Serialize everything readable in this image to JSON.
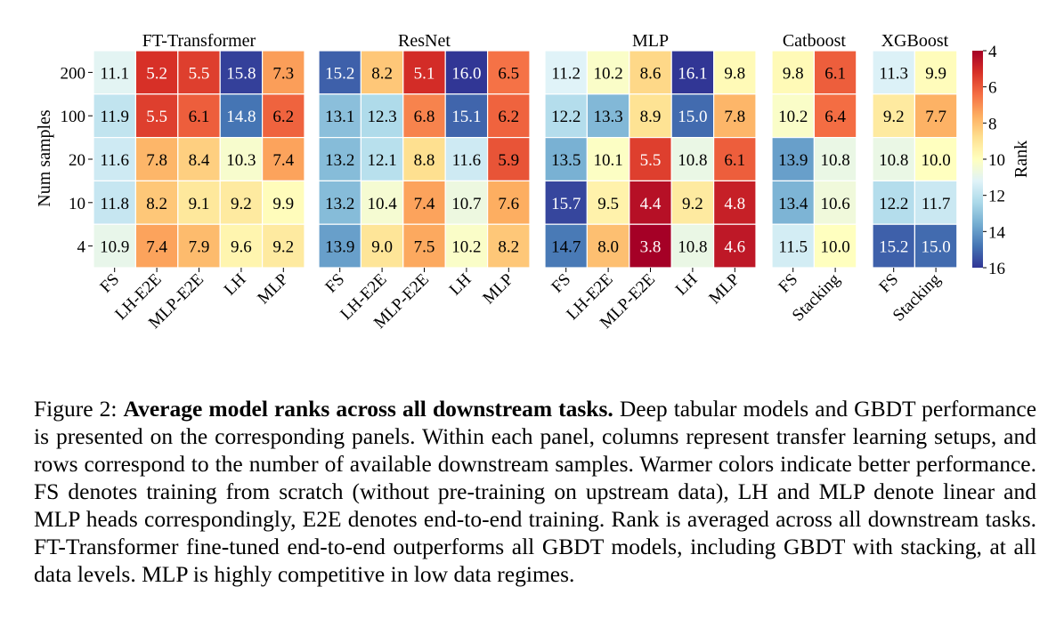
{
  "chart_data": {
    "type": "heatmap",
    "ylabel": "Num samples",
    "rows": [
      "200",
      "100",
      "20",
      "10",
      "4"
    ],
    "colorbar": {
      "label": "Rank",
      "vmin": 4,
      "vmax": 16,
      "reversed": true,
      "ticks": [
        4,
        6,
        8,
        10,
        12,
        14,
        16
      ],
      "colormap": "RdYlBu"
    },
    "panels": [
      {
        "title": "FT-Transformer",
        "columns": [
          "FS",
          "LH-E2E",
          "MLP-E2E",
          "LH",
          "MLP"
        ],
        "values": [
          [
            11.1,
            5.2,
            5.5,
            15.8,
            7.3
          ],
          [
            11.9,
            5.5,
            6.1,
            14.8,
            6.2
          ],
          [
            11.6,
            7.8,
            8.4,
            10.3,
            7.4
          ],
          [
            11.8,
            8.2,
            9.1,
            9.2,
            9.9
          ],
          [
            10.9,
            7.4,
            7.9,
            9.6,
            9.2
          ]
        ]
      },
      {
        "title": "ResNet",
        "columns": [
          "FS",
          "LH-E2E",
          "MLP-E2E",
          "LH",
          "MLP"
        ],
        "values": [
          [
            15.2,
            8.2,
            5.1,
            16.0,
            6.5
          ],
          [
            13.1,
            12.3,
            6.8,
            15.1,
            6.2
          ],
          [
            13.2,
            12.1,
            8.8,
            11.6,
            5.9
          ],
          [
            13.2,
            10.4,
            7.4,
            10.7,
            7.6
          ],
          [
            13.9,
            9.0,
            7.5,
            10.2,
            8.2
          ]
        ]
      },
      {
        "title": "MLP",
        "columns": [
          "FS",
          "LH-E2E",
          "MLP-E2E",
          "LH",
          "MLP"
        ],
        "values": [
          [
            11.2,
            10.2,
            8.6,
            16.1,
            9.8
          ],
          [
            12.2,
            13.3,
            8.9,
            15.0,
            7.8
          ],
          [
            13.5,
            10.1,
            5.5,
            10.8,
            6.1
          ],
          [
            15.7,
            9.5,
            4.4,
            9.2,
            4.8
          ],
          [
            14.7,
            8.0,
            3.8,
            10.8,
            4.6
          ]
        ]
      },
      {
        "title": "Catboost",
        "columns": [
          "FS",
          "Stacking"
        ],
        "values": [
          [
            9.8,
            6.1
          ],
          [
            10.2,
            6.4
          ],
          [
            13.9,
            10.8
          ],
          [
            13.4,
            10.6
          ],
          [
            11.5,
            10.0
          ]
        ]
      },
      {
        "title": "XGBoost",
        "columns": [
          "FS",
          "Stacking"
        ],
        "values": [
          [
            11.3,
            9.9
          ],
          [
            9.2,
            7.7
          ],
          [
            10.8,
            10.0
          ],
          [
            12.2,
            11.7
          ],
          [
            15.2,
            15.0
          ]
        ]
      }
    ]
  },
  "caption": {
    "label": "Figure 2: ",
    "bold": "Average model ranks across all downstream tasks.",
    "text": " Deep tabular models and GBDT performance is presented on the corresponding panels. Within each panel, columns represent transfer learning setups, and rows correspond to the number of available downstream samples. Warmer colors indicate better performance. FS denotes training from scratch (without pre-training on upstream data), LH and MLP denote linear and MLP heads correspondingly, E2E denotes end-to-end training. Rank is averaged across all downstream tasks. FT-Transformer fine-tuned end-to-end outperforms all GBDT models, including GBDT with stacking, at all data levels. MLP is highly competitive in low data regimes."
  }
}
